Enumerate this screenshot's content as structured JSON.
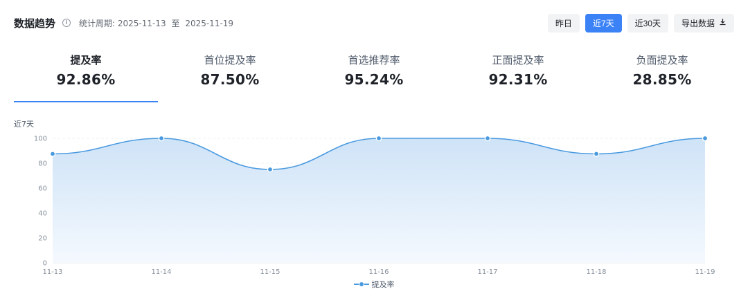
{
  "header": {
    "title": "数据趋势",
    "period_label": "统计周期:",
    "date_start": "2025-11-13",
    "date_sep": "至",
    "date_end": "2025-11-19",
    "buttons": {
      "yesterday": "昨日",
      "last7": "近7天",
      "last30": "近30天",
      "export": "导出数据"
    },
    "active_button": "近7天"
  },
  "kpis": [
    {
      "label": "提及率",
      "value": "92.86%",
      "active": true
    },
    {
      "label": "首位提及率",
      "value": "87.50%",
      "active": false
    },
    {
      "label": "首选推荐率",
      "value": "95.24%",
      "active": false
    },
    {
      "label": "正面提及率",
      "value": "92.31%",
      "active": false
    },
    {
      "label": "负面提及率",
      "value": "28.85%",
      "active": false
    }
  ],
  "chart_period_tag": "近7天",
  "colors": {
    "accent": "#3b82f6",
    "line": "#4a9ae0",
    "area_top": "#cfe3f7",
    "area_bottom": "#f4f9fe"
  },
  "chart_data": {
    "type": "area",
    "x": [
      "11-13",
      "11-14",
      "11-15",
      "11-16",
      "11-17",
      "11-18",
      "11-19"
    ],
    "series": [
      {
        "name": "提及率",
        "values": [
          87.5,
          100,
          75,
          100,
          100,
          87.5,
          100
        ]
      }
    ],
    "ylim": [
      0,
      100
    ],
    "yticks": [
      0,
      20,
      40,
      60,
      80,
      100
    ],
    "grid": true,
    "smooth": true,
    "legend": "bottom-center"
  }
}
